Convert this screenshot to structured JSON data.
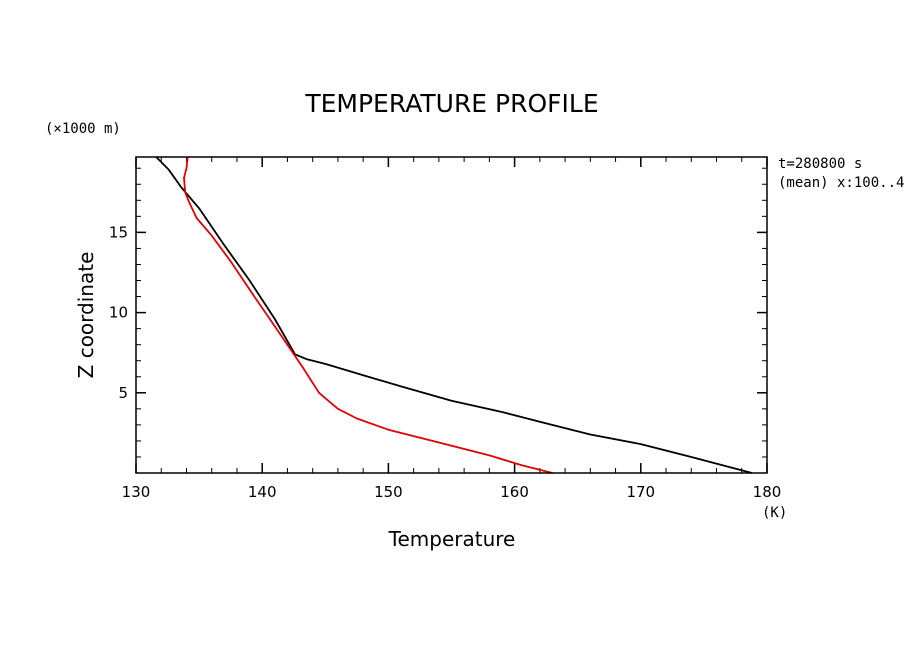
{
  "chart_data": {
    "type": "line",
    "title": "TEMPERATURE PROFILE",
    "xlabel": "Temperature",
    "x_unit": "(K)",
    "ylabel": "Z coordinate",
    "y_unit": "(×1000 m)",
    "xlim": [
      130,
      180
    ],
    "ylim": [
      0,
      19.7
    ],
    "xticks": [
      130,
      140,
      150,
      160,
      170,
      180
    ],
    "yticks": [
      5,
      10,
      15
    ],
    "annotation_time": "t=280800 s",
    "annotation_mean": "(mean) x:100..4",
    "series": [
      {
        "color": "#000000",
        "points": [
          [
            131.6,
            19.7
          ],
          [
            132.6,
            18.9
          ],
          [
            133.6,
            17.8
          ],
          [
            135.0,
            16.5
          ],
          [
            137.0,
            14.2
          ],
          [
            139.0,
            12.0
          ],
          [
            141.0,
            9.6
          ],
          [
            142.6,
            7.4
          ],
          [
            143.5,
            7.1
          ],
          [
            145.0,
            6.8
          ],
          [
            148.0,
            6.1
          ],
          [
            151.0,
            5.4
          ],
          [
            155.0,
            4.5
          ],
          [
            159.0,
            3.8
          ],
          [
            162.0,
            3.2
          ],
          [
            166.0,
            2.4
          ],
          [
            170.0,
            1.8
          ],
          [
            174.0,
            1.0
          ],
          [
            178.8,
            0.0
          ]
        ]
      },
      {
        "color": "#e00000",
        "points": [
          [
            134.1,
            19.7
          ],
          [
            134.0,
            19.0
          ],
          [
            133.8,
            18.4
          ],
          [
            133.9,
            17.5
          ],
          [
            134.2,
            16.9
          ],
          [
            134.8,
            15.9
          ],
          [
            136.0,
            14.8
          ],
          [
            137.5,
            13.2
          ],
          [
            139.2,
            11.2
          ],
          [
            140.6,
            9.6
          ],
          [
            142.0,
            8.0
          ],
          [
            143.2,
            6.6
          ],
          [
            144.5,
            5.0
          ],
          [
            146.0,
            4.0
          ],
          [
            147.5,
            3.4
          ],
          [
            150.0,
            2.7
          ],
          [
            154.0,
            1.9
          ],
          [
            158.0,
            1.1
          ],
          [
            160.5,
            0.5
          ],
          [
            163.0,
            0.0
          ]
        ]
      }
    ]
  }
}
